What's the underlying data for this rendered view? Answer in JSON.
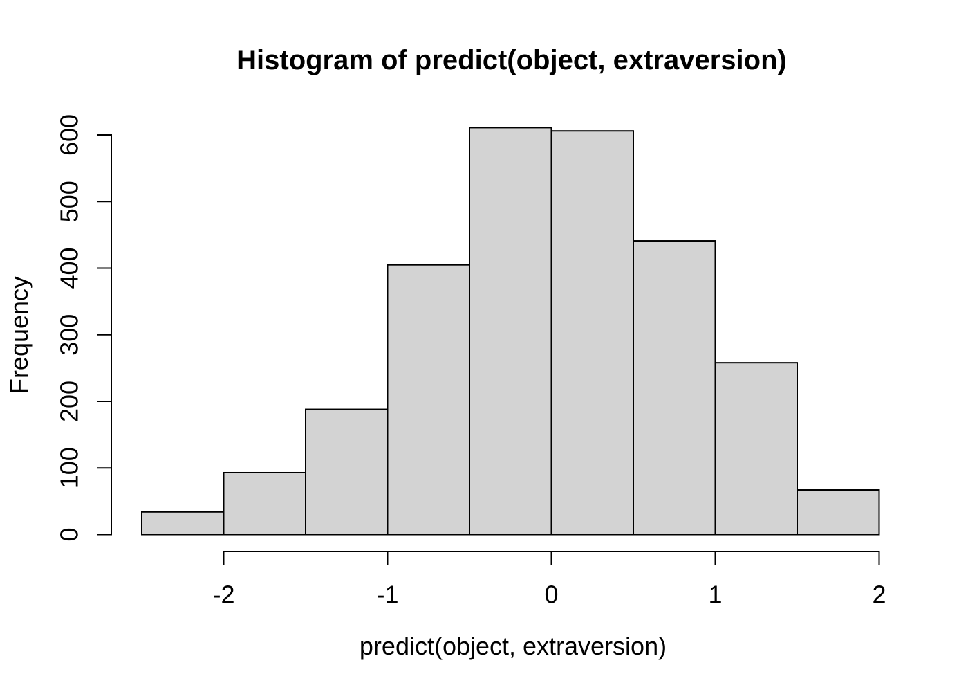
{
  "chart_data": {
    "type": "bar",
    "subtype": "histogram",
    "title": "Histogram of predict(object, extraversion)",
    "xlabel": "predict(object, extraversion)",
    "ylabel": "Frequency",
    "breaks": [
      -2.5,
      -2.0,
      -1.5,
      -1.0,
      -0.5,
      0.0,
      0.5,
      1.0,
      1.5,
      2.0
    ],
    "counts": [
      34,
      93,
      188,
      405,
      611,
      606,
      441,
      258,
      67
    ],
    "x_tick_values": [
      -2,
      -1,
      0,
      1,
      2
    ],
    "x_tick_labels": [
      "-2",
      "-1",
      "0",
      "1",
      "2"
    ],
    "y_tick_values": [
      0,
      100,
      200,
      300,
      400,
      500,
      600
    ],
    "y_tick_labels": [
      "0",
      "100",
      "200",
      "300",
      "400",
      "500",
      "600"
    ],
    "xlim": [
      -2.5,
      2.0
    ],
    "ylim": [
      0,
      600
    ],
    "grid": false,
    "legend": null,
    "colors": {
      "bar_fill": "#d3d3d3",
      "bar_stroke": "#000000",
      "axis": "#000000",
      "background": "#ffffff"
    }
  }
}
